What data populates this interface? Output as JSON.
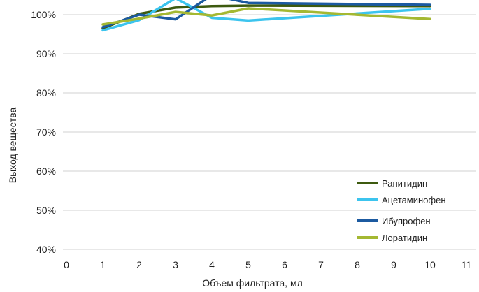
{
  "chart_data": {
    "type": "line",
    "xlabel": "Объем фильтрата, мл",
    "ylabel": "Выход вещества",
    "xlim": [
      0,
      11
    ],
    "ylim": [
      40,
      103
    ],
    "x_ticks": [
      "0",
      "1",
      "2",
      "3",
      "4",
      "5",
      "6",
      "7",
      "8",
      "9",
      "10",
      "11"
    ],
    "y_ticks": [
      {
        "value": 40,
        "label": "40%"
      },
      {
        "value": 50,
        "label": "50%"
      },
      {
        "value": 60,
        "label": "60%"
      },
      {
        "value": 70,
        "label": "70%"
      },
      {
        "value": 80,
        "label": "80%"
      },
      {
        "value": 90,
        "label": "90%"
      },
      {
        "value": 100,
        "label": "100%"
      }
    ],
    "grid": true,
    "legend_position": "bottom-right",
    "series": [
      {
        "name": "Ранитидин",
        "color": "#3d5a0f",
        "points": [
          [
            1,
            96.5
          ],
          [
            2,
            100.2
          ],
          [
            3,
            101.8
          ],
          [
            4,
            102.2
          ],
          [
            5,
            102.3
          ],
          [
            10,
            102.2
          ]
        ]
      },
      {
        "name": "Ацетаминофен",
        "color": "#3cc4ee",
        "points": [
          [
            1,
            96.0
          ],
          [
            2,
            98.6
          ],
          [
            3,
            104.2
          ],
          [
            4,
            99.2
          ],
          [
            5,
            98.5
          ],
          [
            10,
            101.5
          ]
        ]
      },
      {
        "name": "Ибупрофен",
        "color": "#1c5aa0",
        "points": [
          [
            1,
            96.8
          ],
          [
            2,
            100.0
          ],
          [
            3,
            98.8
          ],
          [
            4,
            105.0
          ],
          [
            5,
            103.0
          ],
          [
            10,
            102.5
          ]
        ]
      },
      {
        "name": "Лоратидин",
        "color": "#a4b832",
        "points": [
          [
            1,
            97.5
          ],
          [
            2,
            99.0
          ],
          [
            3,
            100.7
          ],
          [
            4,
            99.8
          ],
          [
            5,
            101.6
          ],
          [
            10,
            98.9
          ]
        ]
      }
    ]
  }
}
